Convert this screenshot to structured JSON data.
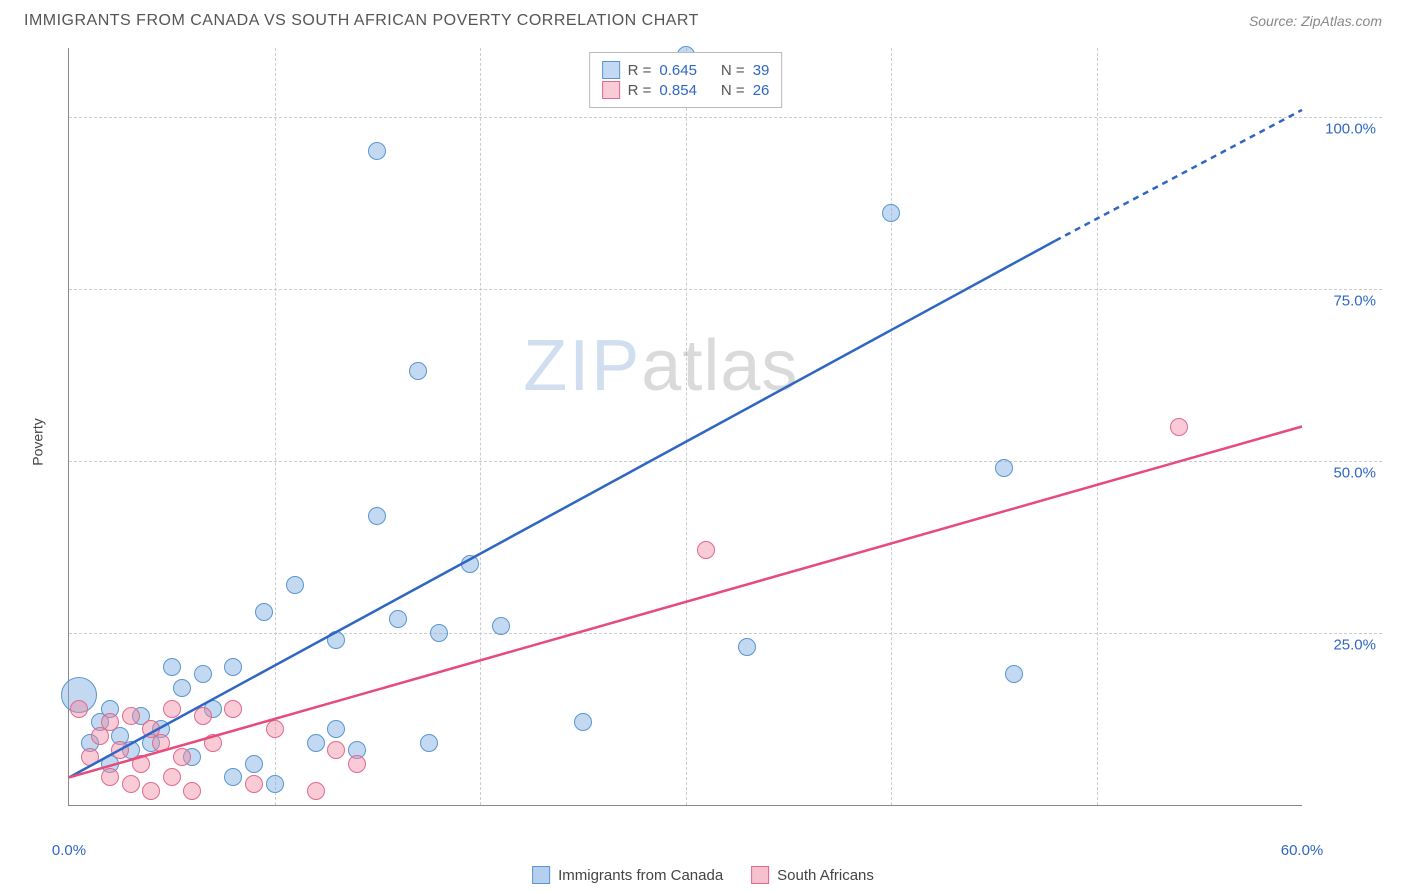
{
  "header": {
    "title": "IMMIGRANTS FROM CANADA VS SOUTH AFRICAN POVERTY CORRELATION CHART",
    "source_prefix": "Source: ",
    "source": "ZipAtlas.com"
  },
  "watermark": {
    "zip": "ZIP",
    "atlas": "atlas"
  },
  "chart": {
    "type": "scatter",
    "ylabel": "Poverty",
    "xlim": [
      0,
      60
    ],
    "ylim": [
      0,
      110
    ],
    "x_ticks": [
      0,
      60
    ],
    "x_tick_labels": [
      "0.0%",
      "60.0%"
    ],
    "x_minor_ticks": [
      10,
      20,
      30,
      40,
      50
    ],
    "y_ticks": [
      25,
      50,
      75,
      100
    ],
    "y_tick_labels": [
      "25.0%",
      "50.0%",
      "75.0%",
      "100.0%"
    ],
    "background_color": "#ffffff",
    "grid_color": "#cccccc",
    "axis_color": "#888888",
    "tick_label_color_x": "#2f66c4",
    "tick_label_color_y": "#2f66c4",
    "series": [
      {
        "name": "Immigrants from Canada",
        "color_fill": "rgba(120,170,225,0.45)",
        "color_stroke": "#5a96d0",
        "marker_radius": 9,
        "correlation_R": "0.645",
        "correlation_N": "39",
        "trend": {
          "x1": 0,
          "y1": 4,
          "x2": 48,
          "y2": 82,
          "dash_from_x": 48,
          "dash_to_x": 60,
          "dash_to_y": 101,
          "color": "#2f66c4",
          "width": 2.5
        },
        "points": [
          {
            "x": 0.5,
            "y": 16,
            "r": 18
          },
          {
            "x": 1,
            "y": 9
          },
          {
            "x": 1.5,
            "y": 12
          },
          {
            "x": 2,
            "y": 6
          },
          {
            "x": 2,
            "y": 14
          },
          {
            "x": 2.5,
            "y": 10
          },
          {
            "x": 3,
            "y": 8
          },
          {
            "x": 3.5,
            "y": 13
          },
          {
            "x": 4,
            "y": 9
          },
          {
            "x": 4.5,
            "y": 11
          },
          {
            "x": 5,
            "y": 20
          },
          {
            "x": 5.5,
            "y": 17
          },
          {
            "x": 6,
            "y": 7
          },
          {
            "x": 6.5,
            "y": 19
          },
          {
            "x": 7,
            "y": 14
          },
          {
            "x": 8,
            "y": 4
          },
          {
            "x": 8,
            "y": 20
          },
          {
            "x": 9,
            "y": 6
          },
          {
            "x": 9.5,
            "y": 28
          },
          {
            "x": 10,
            "y": 3
          },
          {
            "x": 11,
            "y": 32
          },
          {
            "x": 12,
            "y": 9
          },
          {
            "x": 13,
            "y": 24
          },
          {
            "x": 13,
            "y": 11
          },
          {
            "x": 14,
            "y": 8
          },
          {
            "x": 15,
            "y": 42
          },
          {
            "x": 15,
            "y": 95
          },
          {
            "x": 16,
            "y": 27
          },
          {
            "x": 17,
            "y": 63
          },
          {
            "x": 17.5,
            "y": 9
          },
          {
            "x": 18,
            "y": 25
          },
          {
            "x": 19.5,
            "y": 35
          },
          {
            "x": 21,
            "y": 26
          },
          {
            "x": 25,
            "y": 12
          },
          {
            "x": 30,
            "y": 109
          },
          {
            "x": 33,
            "y": 23
          },
          {
            "x": 40,
            "y": 86
          },
          {
            "x": 45.5,
            "y": 49
          },
          {
            "x": 46,
            "y": 19,
            "r": 9
          }
        ]
      },
      {
        "name": "South Africans",
        "color_fill": "rgba(240,140,165,0.45)",
        "color_stroke": "#e06a8f",
        "marker_radius": 9,
        "correlation_R": "0.854",
        "correlation_N": "26",
        "trend": {
          "x1": 0,
          "y1": 4,
          "x2": 60,
          "y2": 55,
          "color": "#e64b7b",
          "width": 2.5
        },
        "points": [
          {
            "x": 0.5,
            "y": 14
          },
          {
            "x": 1,
            "y": 7
          },
          {
            "x": 1.5,
            "y": 10
          },
          {
            "x": 2,
            "y": 4
          },
          {
            "x": 2,
            "y": 12
          },
          {
            "x": 2.5,
            "y": 8
          },
          {
            "x": 3,
            "y": 3
          },
          {
            "x": 3,
            "y": 13
          },
          {
            "x": 3.5,
            "y": 6
          },
          {
            "x": 4,
            "y": 2
          },
          {
            "x": 4,
            "y": 11
          },
          {
            "x": 4.5,
            "y": 9
          },
          {
            "x": 5,
            "y": 4
          },
          {
            "x": 5,
            "y": 14
          },
          {
            "x": 5.5,
            "y": 7
          },
          {
            "x": 6,
            "y": 2
          },
          {
            "x": 6.5,
            "y": 13
          },
          {
            "x": 7,
            "y": 9
          },
          {
            "x": 8,
            "y": 14
          },
          {
            "x": 9,
            "y": 3
          },
          {
            "x": 10,
            "y": 11
          },
          {
            "x": 12,
            "y": 2
          },
          {
            "x": 13,
            "y": 8
          },
          {
            "x": 14,
            "y": 6
          },
          {
            "x": 31,
            "y": 37
          },
          {
            "x": 54,
            "y": 55
          }
        ]
      }
    ],
    "legend_correlation": {
      "R_label": "R =",
      "N_label": "N =",
      "value_color": "#2f66c4",
      "label_color": "#555555"
    },
    "x_legend": [
      {
        "label": "Immigrants from Canada",
        "fill": "rgba(120,170,225,0.55)",
        "stroke": "#5a96d0"
      },
      {
        "label": "South Africans",
        "fill": "rgba(240,140,165,0.55)",
        "stroke": "#e06a8f"
      }
    ]
  }
}
